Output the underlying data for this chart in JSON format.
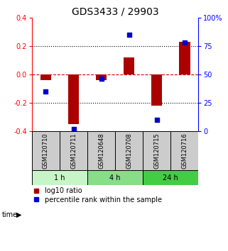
{
  "title": "GDS3433 / 29903",
  "samples": [
    "GSM120710",
    "GSM120711",
    "GSM120648",
    "GSM120708",
    "GSM120715",
    "GSM120716"
  ],
  "log10_ratio": [
    -0.04,
    -0.35,
    -0.04,
    0.12,
    -0.22,
    0.23
  ],
  "percentile_rank": [
    35,
    2,
    46,
    85,
    10,
    78
  ],
  "time_groups": [
    {
      "label": "1 h",
      "start": 0,
      "end": 2,
      "color": "#c8f5c8"
    },
    {
      "label": "4 h",
      "start": 2,
      "end": 4,
      "color": "#88dd88"
    },
    {
      "label": "24 h",
      "start": 4,
      "end": 6,
      "color": "#44cc44"
    }
  ],
  "bar_color": "#aa0000",
  "dot_color": "#0000cc",
  "ylim_left": [
    -0.4,
    0.4
  ],
  "ylim_right": [
    0,
    100
  ],
  "yticks_left": [
    -0.4,
    -0.2,
    0.0,
    0.2,
    0.4
  ],
  "yticks_right": [
    0,
    25,
    50,
    75,
    100
  ],
  "zero_line_color": "#cc0000",
  "grid_color": "#000000",
  "bg_color": "#ffffff",
  "sample_box_color": "#cccccc",
  "title_fontsize": 10,
  "tick_fontsize": 7,
  "label_fontsize": 6,
  "legend_fontsize": 7,
  "time_fontsize": 7,
  "bar_width": 0.4
}
